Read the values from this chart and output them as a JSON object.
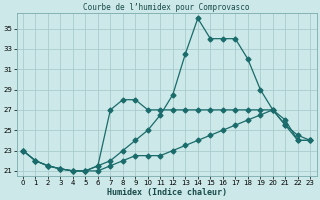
{
  "title": "Courbe de l’humidex pour Comprovasco",
  "xlabel": "Humidex (Indice chaleur)",
  "bg_color": "#cce8e8",
  "grid_color": "#aacccc",
  "line_color": "#1a6b6b",
  "xlim": [
    -0.5,
    23.5
  ],
  "ylim": [
    20.5,
    36.5
  ],
  "xticks": [
    0,
    1,
    2,
    3,
    4,
    5,
    6,
    7,
    8,
    9,
    10,
    11,
    12,
    13,
    14,
    15,
    16,
    17,
    18,
    19,
    20,
    21,
    22,
    23
  ],
  "yticks": [
    21,
    23,
    25,
    27,
    29,
    31,
    33,
    35
  ],
  "line_top_x": [
    0,
    1,
    2,
    3,
    4,
    5,
    6,
    7,
    8,
    9,
    10,
    11,
    12,
    13,
    14,
    15,
    16,
    17,
    18,
    19,
    20,
    21,
    22,
    23
  ],
  "line_top_y": [
    23,
    22,
    21.5,
    21.2,
    21,
    21,
    21.5,
    22,
    23,
    24,
    25,
    26.5,
    28.5,
    32.5,
    36,
    34,
    34,
    34,
    32,
    29,
    27,
    26,
    24,
    24
  ],
  "line_mid_x": [
    0,
    1,
    2,
    3,
    4,
    5,
    6,
    7,
    8,
    9,
    10,
    11,
    12,
    13,
    14,
    15,
    16,
    17,
    18,
    19,
    20,
    21,
    22,
    23
  ],
  "line_mid_y": [
    23,
    22,
    21.5,
    21.2,
    21,
    21,
    21.5,
    27,
    28,
    28,
    27,
    27,
    27,
    27,
    27,
    27,
    27,
    27,
    27,
    27,
    27,
    25.5,
    24.5,
    24
  ],
  "line_bot_x": [
    0,
    1,
    2,
    3,
    4,
    5,
    6,
    7,
    8,
    9,
    10,
    11,
    12,
    13,
    14,
    15,
    16,
    17,
    18,
    19,
    20,
    21,
    22,
    23
  ],
  "line_bot_y": [
    23,
    22,
    21.5,
    21.2,
    21,
    21,
    21,
    21.5,
    22,
    22.5,
    22.5,
    22.5,
    23,
    23.5,
    24,
    24.5,
    25,
    25.5,
    26,
    26.5,
    27,
    25.5,
    24,
    24
  ]
}
